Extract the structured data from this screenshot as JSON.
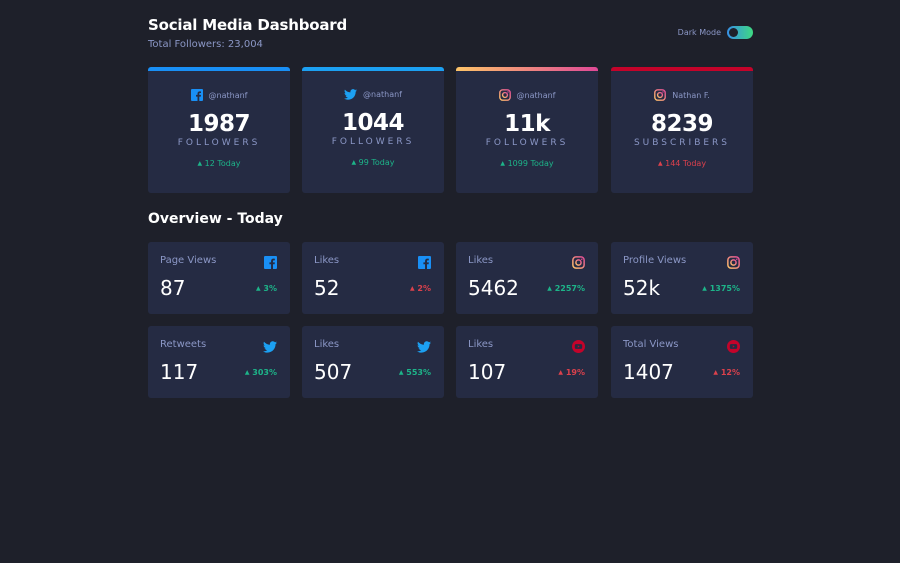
{
  "header": {
    "title": "Social Media Dashboard",
    "total_followers": "Total Followers: 23,004",
    "dark_mode_label": "Dark Mode"
  },
  "colors": {
    "background": "#1e202a",
    "card": "#252b43",
    "text_muted": "#8b97c6",
    "up": "#1db489",
    "down": "#dc414c",
    "facebook": "#198ff5",
    "twitter": "#1ca0f2",
    "youtube": "#c4032a"
  },
  "cards": [
    {
      "platform": "facebook-icon",
      "handle": "@nathanf",
      "count": "1987",
      "unit": "FOLLOWERS",
      "today": "12 Today",
      "trend": "up"
    },
    {
      "platform": "twitter-icon",
      "handle": "@nathanf",
      "count": "1044",
      "unit": "FOLLOWERS",
      "today": "99 Today",
      "trend": "up"
    },
    {
      "platform": "instagram-icon",
      "handle": "@nathanf",
      "count": "11k",
      "unit": "FOLLOWERS",
      "today": "1099 Today",
      "trend": "up"
    },
    {
      "platform": "instagram-icon",
      "handle": "Nathan F.",
      "count": "8239",
      "unit": "SUBSCRIBERS",
      "today": "144 Today",
      "trend": "down"
    }
  ],
  "overview": {
    "title": "Overview - Today",
    "items": [
      {
        "label": "Page Views",
        "icon": "facebook-icon",
        "value": "87",
        "pct": "3%",
        "trend": "up"
      },
      {
        "label": "Likes",
        "icon": "facebook-icon",
        "value": "52",
        "pct": "2%",
        "trend": "down"
      },
      {
        "label": "Likes",
        "icon": "instagram-icon",
        "value": "5462",
        "pct": "2257%",
        "trend": "up"
      },
      {
        "label": "Profile Views",
        "icon": "instagram-icon",
        "value": "52k",
        "pct": "1375%",
        "trend": "up"
      },
      {
        "label": "Retweets",
        "icon": "twitter-icon",
        "value": "117",
        "pct": "303%",
        "trend": "up"
      },
      {
        "label": "Likes",
        "icon": "twitter-icon",
        "value": "507",
        "pct": "553%",
        "trend": "up"
      },
      {
        "label": "Likes",
        "icon": "youtube-icon",
        "value": "107",
        "pct": "19%",
        "trend": "down"
      },
      {
        "label": "Total Views",
        "icon": "youtube-icon",
        "value": "1407",
        "pct": "12%",
        "trend": "down"
      }
    ]
  }
}
